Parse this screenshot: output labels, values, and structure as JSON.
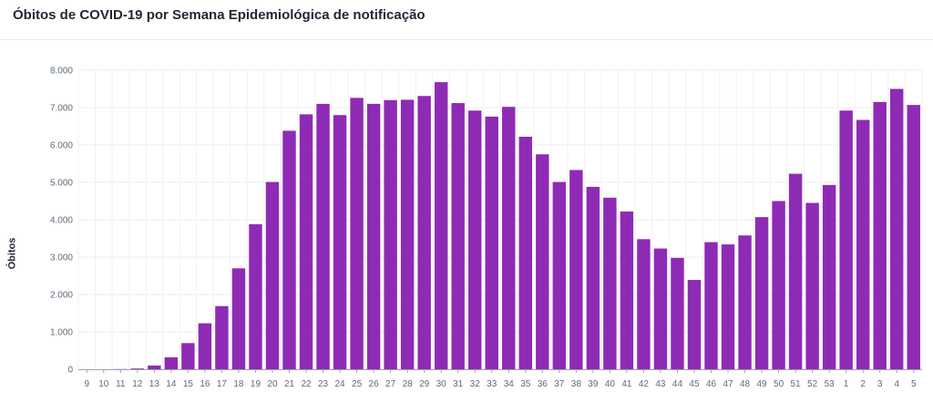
{
  "header": {
    "title": "Óbitos de COVID-19 por Semana Epidemiológica de notificação"
  },
  "chart_data": {
    "type": "bar",
    "title": "Óbitos de COVID-19 por Semana Epidemiológica de notificação",
    "xlabel": "",
    "ylabel": "Óbitos",
    "ylim": [
      0,
      8000
    ],
    "yticks": [
      0,
      1000,
      2000,
      3000,
      4000,
      5000,
      6000,
      7000,
      8000
    ],
    "ytick_labels": [
      "0",
      "1.000",
      "2.000",
      "3.000",
      "4.000",
      "5.000",
      "6.000",
      "7.000",
      "8.000"
    ],
    "grid": true,
    "bar_color": "#8e2bb5",
    "categories": [
      "9",
      "10",
      "11",
      "12",
      "13",
      "14",
      "15",
      "16",
      "17",
      "18",
      "19",
      "20",
      "21",
      "22",
      "23",
      "24",
      "25",
      "26",
      "27",
      "28",
      "29",
      "30",
      "31",
      "32",
      "33",
      "34",
      "35",
      "36",
      "37",
      "38",
      "39",
      "40",
      "41",
      "42",
      "43",
      "44",
      "45",
      "46",
      "47",
      "48",
      "49",
      "50",
      "51",
      "52",
      "53",
      "1",
      "2",
      "3",
      "4",
      "5"
    ],
    "values": [
      0,
      0,
      5,
      20,
      100,
      320,
      700,
      1230,
      1690,
      2700,
      3880,
      5010,
      6380,
      6820,
      7100,
      6800,
      7260,
      7100,
      7200,
      7210,
      7310,
      7680,
      7120,
      6920,
      6760,
      7020,
      6220,
      5750,
      5010,
      5330,
      4880,
      4590,
      4220,
      3480,
      3230,
      2980,
      2390,
      3400,
      3340,
      3580,
      4070,
      4500,
      5230,
      4450,
      4930,
      6920,
      6670,
      7150,
      7500,
      7070
    ]
  }
}
